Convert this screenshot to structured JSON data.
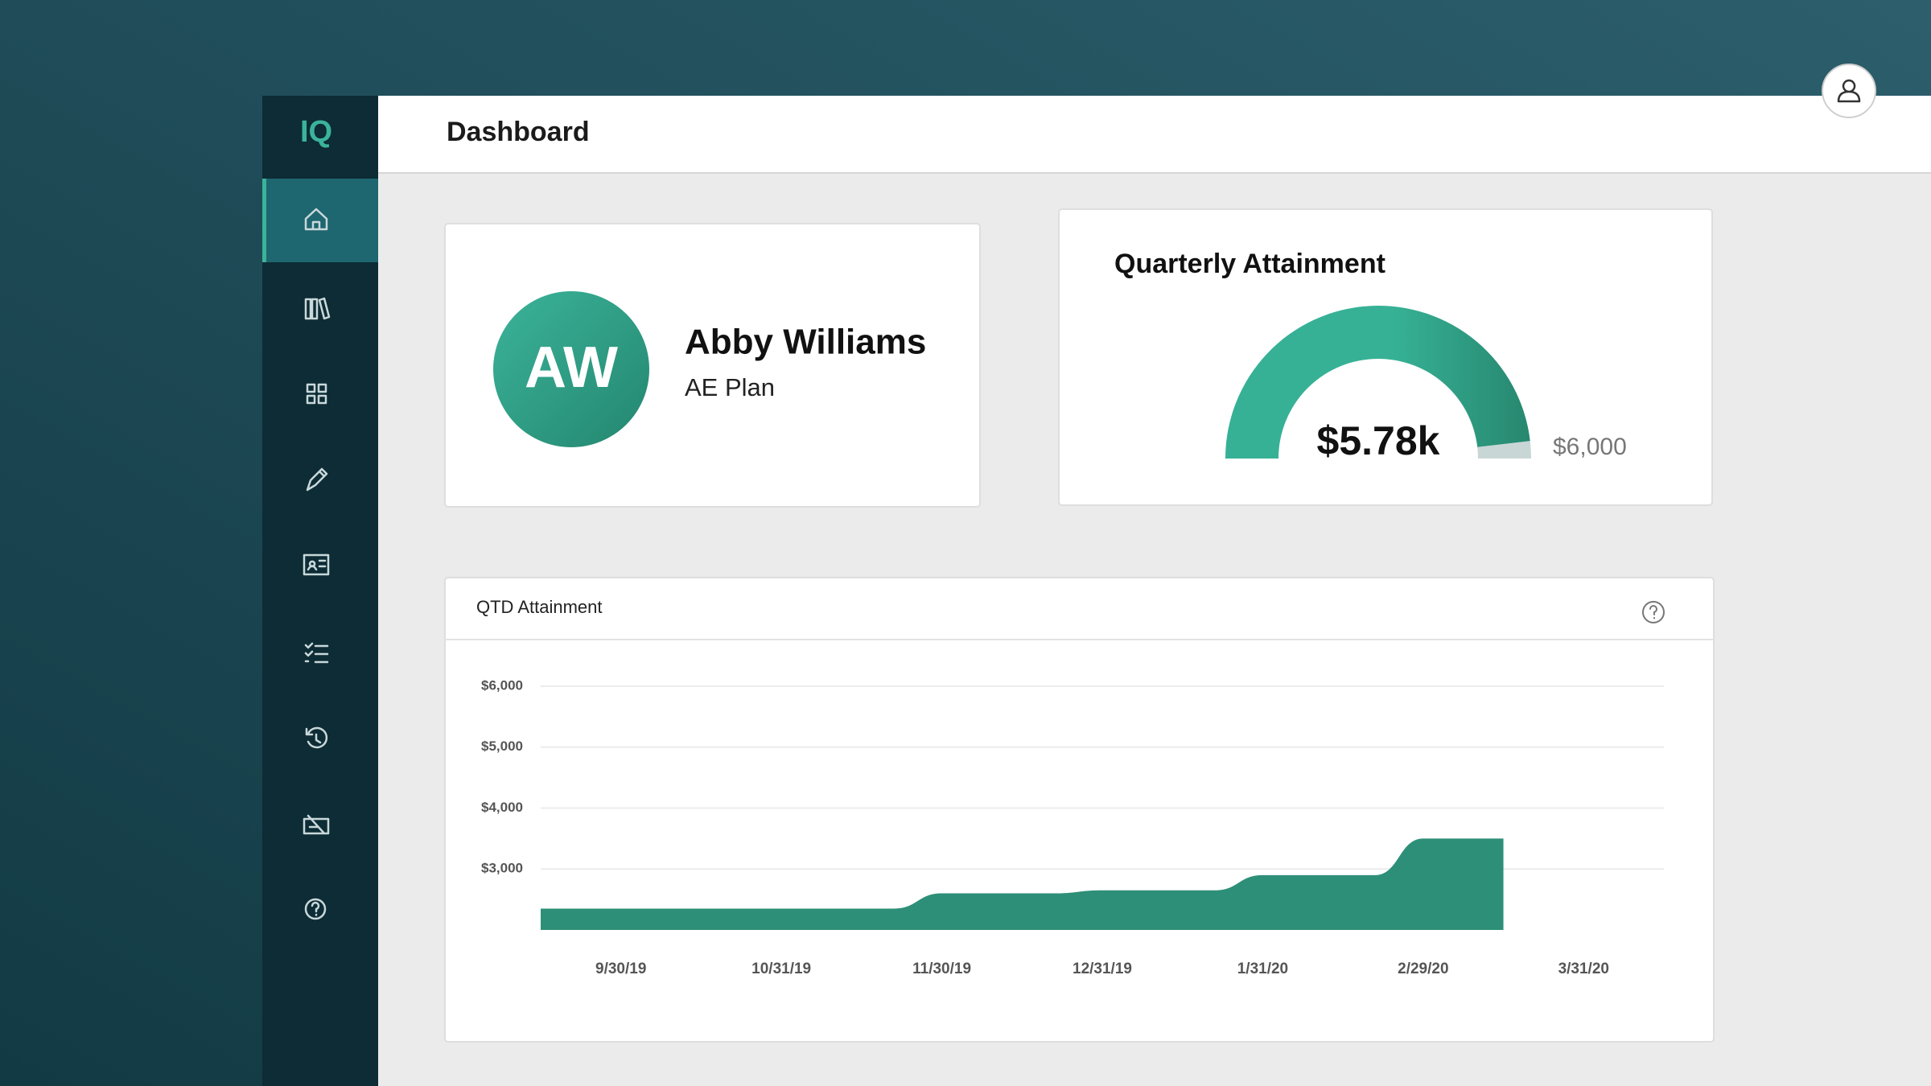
{
  "app": {
    "logo": "IQ"
  },
  "header": {
    "title": "Dashboard"
  },
  "profile": {
    "initials": "AW",
    "name": "Abby Williams",
    "plan": "AE Plan"
  },
  "gauge": {
    "type": "gauge",
    "title": "Quarterly Attainment",
    "value": 5780,
    "value_label": "$5.78k",
    "max": {
      "value": 6000,
      "label": "$6,000"
    },
    "color": "#35b094"
  },
  "chart_data": {
    "type": "area",
    "title": "QTD Attainment",
    "categories": [
      "9/30/19",
      "10/31/19",
      "11/30/19",
      "12/31/19",
      "1/31/20",
      "2/29/20",
      "3/31/20"
    ],
    "values": [
      2350,
      2350,
      2600,
      2650,
      2900,
      3500,
      null
    ],
    "color": "#2e8f78",
    "ylim": [
      2000,
      6000
    ],
    "yticks": [
      {
        "value": 3000,
        "label": "$3,000"
      },
      {
        "value": 4000,
        "label": "$4,000"
      },
      {
        "value": 5000,
        "label": "$5,000"
      },
      {
        "value": 6000,
        "label": "$6,000"
      }
    ],
    "grid": true
  }
}
